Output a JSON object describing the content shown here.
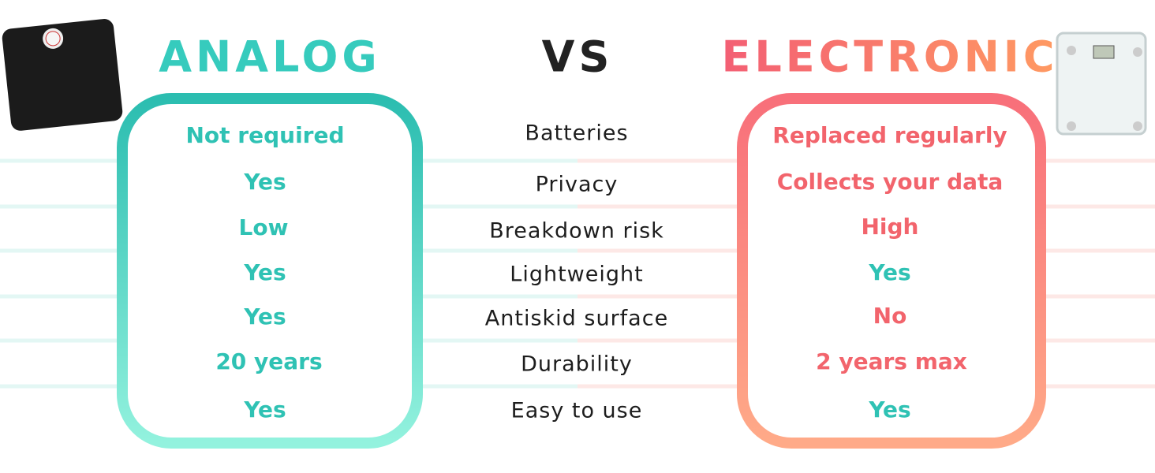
{
  "header": {
    "left_title": "ANALOG",
    "middle": "VS",
    "right_title": "ELECTRONIC"
  },
  "rows": [
    {
      "feature": "Batteries",
      "analog": "Not required",
      "electronic": "Replaced regularly"
    },
    {
      "feature": "Privacy",
      "analog": "Yes",
      "electronic": "Collects your data"
    },
    {
      "feature": "Breakdown risk",
      "analog": "Low",
      "electronic": "High"
    },
    {
      "feature": "Lightweight",
      "analog": "Yes",
      "electronic": "Yes"
    },
    {
      "feature": "Antiskid surface",
      "analog": "Yes",
      "electronic": "No"
    },
    {
      "feature": "Durability",
      "analog": "20 years",
      "electronic": "2 years max"
    },
    {
      "feature": "Easy to use",
      "analog": "Yes",
      "electronic": "Yes"
    }
  ]
}
